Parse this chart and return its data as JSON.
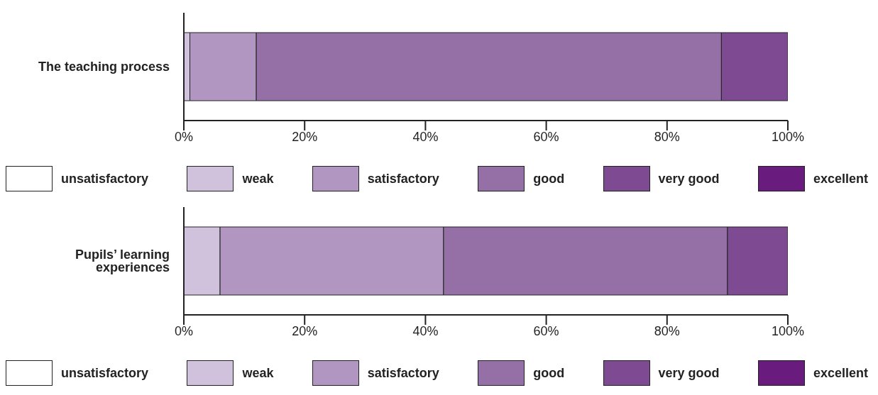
{
  "chart_data": [
    {
      "type": "bar",
      "orientation": "horizontal",
      "stacked": true,
      "categories": [
        "The teaching process"
      ],
      "series": [
        {
          "name": "unsatisfactory",
          "color": "#ffffff",
          "values": [
            0
          ]
        },
        {
          "name": "weak",
          "color": "#d0c1dc",
          "values": [
            1
          ]
        },
        {
          "name": "satisfactory",
          "color": "#b096c0",
          "values": [
            11
          ]
        },
        {
          "name": "good",
          "color": "#9570a6",
          "values": [
            77
          ]
        },
        {
          "name": "very good",
          "color": "#7e4a91",
          "values": [
            11
          ]
        },
        {
          "name": "excellent",
          "color": "#6a1c7e",
          "values": [
            0
          ]
        }
      ],
      "xlim": [
        0,
        100
      ],
      "xticks": [
        {
          "value": 0,
          "label": "0%"
        },
        {
          "value": 20,
          "label": "20%"
        },
        {
          "value": 40,
          "label": "40%"
        },
        {
          "value": 60,
          "label": "60%"
        },
        {
          "value": 80,
          "label": "80%"
        },
        {
          "value": 100,
          "label": "100%"
        }
      ],
      "grid": false,
      "legend": "bottom"
    },
    {
      "type": "bar",
      "orientation": "horizontal",
      "stacked": true,
      "categories": [
        "Pupils’ learning experiences"
      ],
      "series": [
        {
          "name": "unsatisfactory",
          "color": "#ffffff",
          "values": [
            0
          ]
        },
        {
          "name": "weak",
          "color": "#d0c1dc",
          "values": [
            6
          ]
        },
        {
          "name": "satisfactory",
          "color": "#b096c0",
          "values": [
            37
          ]
        },
        {
          "name": "good",
          "color": "#9570a6",
          "values": [
            47
          ]
        },
        {
          "name": "very good",
          "color": "#7e4a91",
          "values": [
            10
          ]
        },
        {
          "name": "excellent",
          "color": "#6a1c7e",
          "values": [
            0
          ]
        }
      ],
      "xlim": [
        0,
        100
      ],
      "xticks": [
        {
          "value": 0,
          "label": "0%"
        },
        {
          "value": 20,
          "label": "20%"
        },
        {
          "value": 40,
          "label": "40%"
        },
        {
          "value": 60,
          "label": "60%"
        },
        {
          "value": 80,
          "label": "80%"
        },
        {
          "value": 100,
          "label": "100%"
        }
      ],
      "grid": false,
      "legend": "bottom"
    }
  ]
}
